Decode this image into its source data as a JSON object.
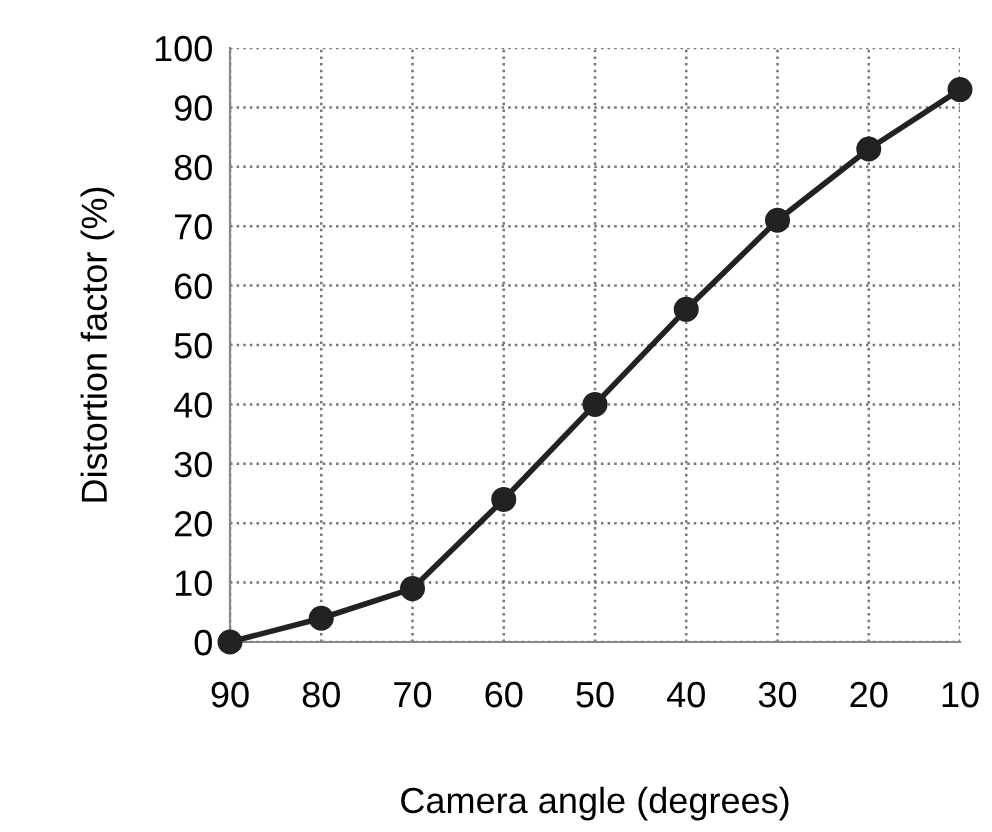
{
  "chart_data": {
    "type": "line",
    "xlabel": "Camera angle (degrees)",
    "ylabel": "Distortion factor (%)",
    "x": [
      90,
      80,
      70,
      60,
      50,
      40,
      30,
      20,
      10
    ],
    "series": [
      {
        "color": "#222222",
        "values": [
          0,
          4,
          9,
          24,
          40,
          56,
          71,
          83,
          93
        ]
      }
    ],
    "xlim": [
      90,
      10
    ],
    "xticks": [
      90,
      80,
      70,
      60,
      50,
      40,
      30,
      20,
      10
    ],
    "ylim": [
      0,
      100
    ],
    "yticks": [
      0,
      10,
      20,
      30,
      40,
      50,
      60,
      70,
      80,
      90,
      100
    ],
    "grid": true,
    "marker": "circle",
    "line_style": "solid"
  }
}
